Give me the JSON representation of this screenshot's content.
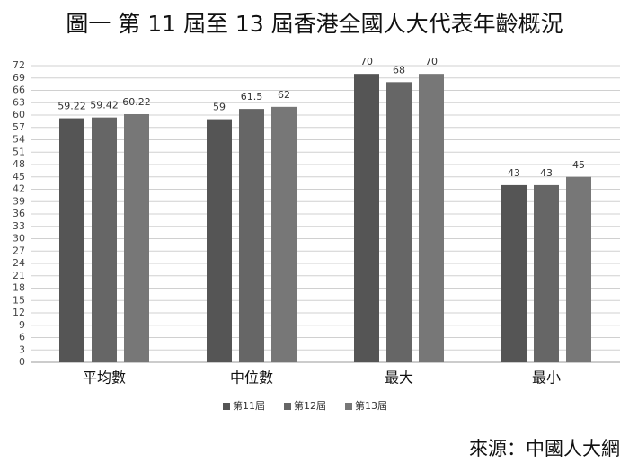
{
  "chart_data": {
    "type": "bar",
    "title": "圖一 第 11 屆至 13 屆香港全國人大代表年齡概況",
    "categories": [
      "平均數",
      "中位數",
      "最大",
      "最小"
    ],
    "series": [
      {
        "name": "第11屆",
        "color": "#555555",
        "values": [
          59.22,
          59,
          70,
          43
        ]
      },
      {
        "name": "第12屆",
        "color": "#666666",
        "values": [
          59.42,
          61.5,
          68,
          43
        ]
      },
      {
        "name": "第13屆",
        "color": "#777777",
        "values": [
          60.22,
          62,
          70,
          45
        ]
      }
    ],
    "ylim": [
      0,
      72
    ],
    "yticks": [
      0,
      3,
      6,
      9,
      12,
      15,
      18,
      21,
      24,
      27,
      30,
      33,
      36,
      39,
      42,
      45,
      48,
      51,
      54,
      57,
      60,
      63,
      66,
      69,
      72
    ],
    "grid": true,
    "legend": "bottom",
    "source": "來源：中國人大網"
  }
}
